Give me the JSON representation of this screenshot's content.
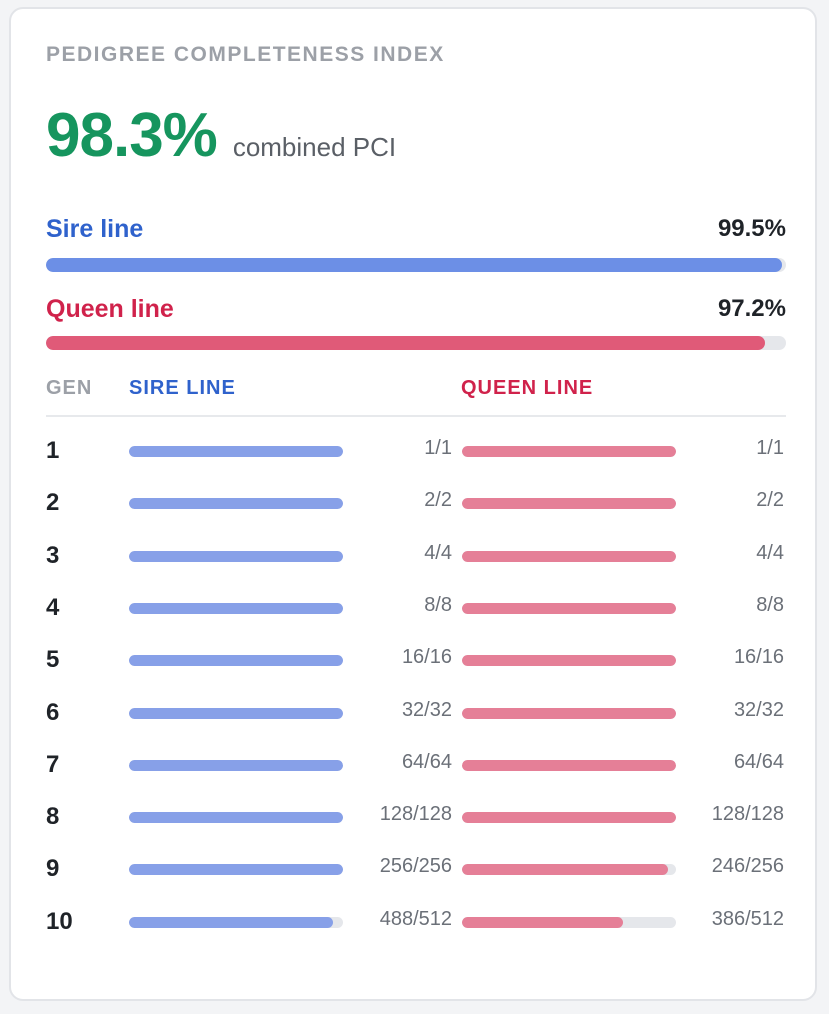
{
  "card": {
    "title": "PEDIGREE COMPLETENESS INDEX",
    "pci_value": "98.3%",
    "pci_label": "combined PCI"
  },
  "lines": {
    "sire": {
      "name": "Sire line",
      "pct_label": "99.5%",
      "pct": 99.5,
      "color": "#6c8fe6"
    },
    "queen": {
      "name": "Queen line",
      "pct_label": "97.2%",
      "pct": 97.2,
      "color": "#e05a78"
    }
  },
  "table": {
    "headers": {
      "gen": "GEN",
      "sire": "SIRE LINE",
      "queen": "QUEEN LINE"
    }
  },
  "chart_data": {
    "type": "bar",
    "categories": [
      "1",
      "2",
      "3",
      "4",
      "5",
      "6",
      "7",
      "8",
      "9",
      "10"
    ],
    "series": [
      {
        "name": "SIRE LINE",
        "known": [
          1,
          2,
          4,
          8,
          16,
          32,
          64,
          128,
          256,
          488
        ],
        "total": [
          1,
          2,
          4,
          8,
          16,
          32,
          64,
          128,
          256,
          512
        ],
        "labels": [
          "1/1",
          "2/2",
          "4/4",
          "8/8",
          "16/16",
          "32/32",
          "64/64",
          "128/128",
          "256/256",
          "488/512"
        ]
      },
      {
        "name": "QUEEN LINE",
        "known": [
          1,
          2,
          4,
          8,
          16,
          32,
          64,
          128,
          246,
          386
        ],
        "total": [
          1,
          2,
          4,
          8,
          16,
          32,
          64,
          128,
          256,
          512
        ],
        "labels": [
          "1/1",
          "2/2",
          "4/4",
          "8/8",
          "16/16",
          "32/32",
          "64/64",
          "128/128",
          "246/256",
          "386/512"
        ]
      }
    ],
    "xlabel": "GEN",
    "ylim": [
      0,
      1
    ]
  }
}
